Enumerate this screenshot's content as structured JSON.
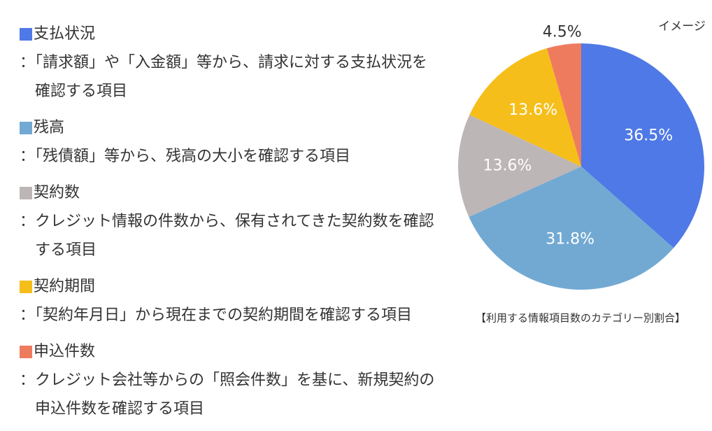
{
  "chart_data": {
    "type": "pie",
    "categories": [
      "支払状況",
      "残高",
      "契約数",
      "契約期間",
      "申込件数"
    ],
    "descriptions": [
      "：「請求額」や「入金額」等から、請求に対する支払状況を確認する項目",
      "：「残債額」等から、残高の大小を確認する項目",
      "：クレジット情報の件数から、保有されてきた契約数を確認する項目",
      "：「契約年月日」から現在までの契約期間を確認する項目",
      "：クレジット会社等からの「照会件数」を基に、新規契約の申込件数を確認する項目"
    ],
    "values": [
      36.5,
      31.8,
      13.6,
      13.6,
      4.5
    ],
    "value_labels": [
      "36.5%",
      "31.8%",
      "13.6%",
      "13.6%",
      "4.5%"
    ],
    "colors": [
      "#4f79e6",
      "#72a9d3",
      "#bdb6b6",
      "#f6be1a",
      "#ef7b5e"
    ],
    "annotation": "イメージ",
    "caption": "【利用する情報項目数のカテゴリー別割合】"
  }
}
